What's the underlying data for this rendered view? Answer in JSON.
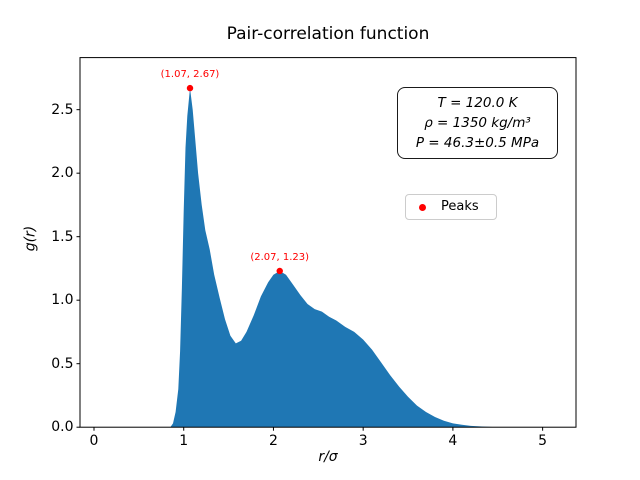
{
  "figure": {
    "background": "#ffffff",
    "axes_color": "#000000"
  },
  "chart_data": {
    "type": "area",
    "title": "Pair-correlation function",
    "xlabel": "r/σ",
    "ylabel": "g(r)",
    "xlim": [
      -0.156,
      5.372
    ],
    "ylim": [
      0,
      2.91
    ],
    "grid": false,
    "x_ticks": [
      "0",
      "1",
      "2",
      "3",
      "4",
      "5"
    ],
    "x_tick_values": [
      0,
      1,
      2,
      3,
      4,
      5
    ],
    "y_ticks": [
      "0.0",
      "0.5",
      "1.0",
      "1.5",
      "2.0",
      "2.5"
    ],
    "y_tick_values": [
      0,
      0.5,
      1.0,
      1.5,
      2.0,
      2.5
    ],
    "fill_color": "#1f77b4",
    "series": [
      {
        "name": "g(r)",
        "points": [
          [
            0.85,
            0.0
          ],
          [
            0.88,
            0.03
          ],
          [
            0.91,
            0.12
          ],
          [
            0.94,
            0.3
          ],
          [
            0.96,
            0.6
          ],
          [
            0.98,
            1.1
          ],
          [
            1.0,
            1.7
          ],
          [
            1.02,
            2.2
          ],
          [
            1.04,
            2.45
          ],
          [
            1.07,
            2.67
          ],
          [
            1.1,
            2.5
          ],
          [
            1.13,
            2.25
          ],
          [
            1.16,
            2.0
          ],
          [
            1.2,
            1.75
          ],
          [
            1.24,
            1.55
          ],
          [
            1.29,
            1.4
          ],
          [
            1.34,
            1.2
          ],
          [
            1.4,
            1.02
          ],
          [
            1.46,
            0.85
          ],
          [
            1.52,
            0.72
          ],
          [
            1.58,
            0.66
          ],
          [
            1.64,
            0.68
          ],
          [
            1.7,
            0.75
          ],
          [
            1.78,
            0.88
          ],
          [
            1.86,
            1.03
          ],
          [
            1.94,
            1.14
          ],
          [
            2.0,
            1.2
          ],
          [
            2.07,
            1.23
          ],
          [
            2.14,
            1.2
          ],
          [
            2.22,
            1.12
          ],
          [
            2.3,
            1.04
          ],
          [
            2.38,
            0.97
          ],
          [
            2.46,
            0.93
          ],
          [
            2.54,
            0.91
          ],
          [
            2.62,
            0.87
          ],
          [
            2.7,
            0.84
          ],
          [
            2.8,
            0.79
          ],
          [
            2.9,
            0.75
          ],
          [
            3.0,
            0.69
          ],
          [
            3.1,
            0.61
          ],
          [
            3.2,
            0.51
          ],
          [
            3.3,
            0.41
          ],
          [
            3.4,
            0.32
          ],
          [
            3.5,
            0.24
          ],
          [
            3.6,
            0.17
          ],
          [
            3.7,
            0.12
          ],
          [
            3.8,
            0.08
          ],
          [
            3.9,
            0.05
          ],
          [
            4.0,
            0.03
          ],
          [
            4.1,
            0.02
          ],
          [
            4.2,
            0.01
          ],
          [
            4.35,
            0.005
          ],
          [
            4.5,
            0.0
          ]
        ]
      }
    ],
    "peaks": {
      "marker_color": "#ff0000",
      "items": [
        {
          "x": 1.07,
          "y": 2.67,
          "label": "(1.07, 2.67)"
        },
        {
          "x": 2.07,
          "y": 1.23,
          "label": "(2.07, 1.23)"
        }
      ]
    },
    "legend": {
      "label": "Peaks",
      "position": "center-right"
    }
  },
  "annotation_box": {
    "lines": [
      "T = 120.0 K",
      "ρ = 1350 kg/m³",
      "P = 46.3±0.5 MPa"
    ]
  }
}
